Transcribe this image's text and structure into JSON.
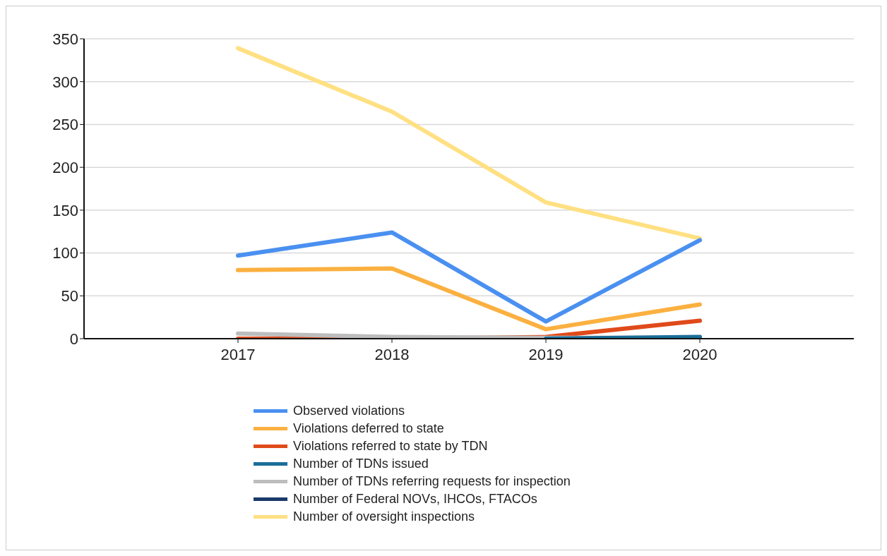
{
  "chart_data": {
    "type": "line",
    "x": [
      2017,
      2018,
      2019,
      2020
    ],
    "xlim": [
      2016,
      2021
    ],
    "xticks": [
      2017,
      2018,
      2019,
      2020
    ],
    "ylim": [
      0,
      350
    ],
    "yticks": [
      0,
      50,
      100,
      150,
      200,
      250,
      300,
      350
    ],
    "grid": "y",
    "legend": "bottom",
    "marker": "none",
    "line_style": "solid",
    "series": [
      {
        "name": "Observed violations",
        "color": "#4a90f0",
        "values": [
          97,
          124,
          20,
          115
        ]
      },
      {
        "name": "Violations deferred to state",
        "color": "#fbb040",
        "values": [
          80,
          82,
          11,
          40
        ]
      },
      {
        "name": "Violations referred to state by TDN",
        "color": "#e04a1a",
        "values": [
          0,
          0,
          2,
          21
        ]
      },
      {
        "name": "Number of TDNs issued",
        "color": "#1a6e99",
        "values": [
          null,
          null,
          0,
          2
        ]
      },
      {
        "name": "Number of TDNs referring requests for inspection",
        "color": "#bdbdbd",
        "values": [
          6,
          2,
          1,
          1
        ]
      },
      {
        "name": "Number of Federal NOVs, IHCOs, FTACOs",
        "color": "#1b3a6b",
        "values": [
          null,
          null,
          null,
          null
        ]
      },
      {
        "name": "Number of oversight inspections",
        "color": "#ffe082",
        "values": [
          339,
          265,
          159,
          117
        ]
      }
    ]
  }
}
